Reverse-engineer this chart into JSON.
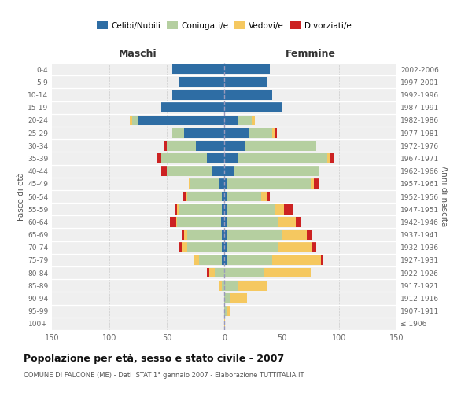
{
  "age_groups": [
    "100+",
    "95-99",
    "90-94",
    "85-89",
    "80-84",
    "75-79",
    "70-74",
    "65-69",
    "60-64",
    "55-59",
    "50-54",
    "45-49",
    "40-44",
    "35-39",
    "30-34",
    "25-29",
    "20-24",
    "15-19",
    "10-14",
    "5-9",
    "0-4"
  ],
  "birth_years": [
    "≤ 1906",
    "1907-1911",
    "1912-1916",
    "1917-1921",
    "1922-1926",
    "1927-1931",
    "1932-1936",
    "1937-1941",
    "1942-1946",
    "1947-1951",
    "1952-1956",
    "1957-1961",
    "1962-1966",
    "1967-1971",
    "1972-1976",
    "1977-1981",
    "1982-1986",
    "1987-1991",
    "1992-1996",
    "1997-2001",
    "2002-2006"
  ],
  "maschi": {
    "celibi": [
      0,
      0,
      0,
      0,
      0,
      2,
      2,
      2,
      3,
      2,
      2,
      5,
      10,
      15,
      25,
      35,
      75,
      55,
      45,
      40,
      45
    ],
    "coniugati": [
      0,
      0,
      0,
      2,
      8,
      20,
      30,
      30,
      38,
      38,
      30,
      25,
      40,
      40,
      25,
      10,
      5,
      0,
      0,
      0,
      0
    ],
    "vedovi": [
      0,
      0,
      0,
      2,
      5,
      5,
      5,
      3,
      1,
      1,
      1,
      1,
      0,
      0,
      0,
      0,
      2,
      0,
      0,
      0,
      0
    ],
    "divorziati": [
      0,
      0,
      0,
      0,
      2,
      0,
      3,
      2,
      5,
      2,
      3,
      0,
      5,
      3,
      3,
      0,
      0,
      0,
      0,
      0,
      0
    ]
  },
  "femmine": {
    "nubili": [
      0,
      0,
      0,
      0,
      0,
      2,
      2,
      2,
      2,
      2,
      2,
      3,
      8,
      12,
      18,
      22,
      12,
      50,
      42,
      38,
      40
    ],
    "coniugate": [
      0,
      2,
      5,
      12,
      35,
      40,
      45,
      48,
      45,
      42,
      30,
      72,
      75,
      78,
      62,
      20,
      12,
      0,
      0,
      0,
      0
    ],
    "vedove": [
      1,
      3,
      15,
      25,
      40,
      42,
      30,
      22,
      15,
      8,
      5,
      3,
      0,
      2,
      0,
      2,
      3,
      0,
      0,
      0,
      0
    ],
    "divorziate": [
      0,
      0,
      0,
      0,
      0,
      2,
      3,
      5,
      5,
      8,
      3,
      4,
      0,
      4,
      0,
      2,
      0,
      0,
      0,
      0,
      0
    ]
  },
  "colors": {
    "celibi": "#2e6da4",
    "coniugati": "#b5cfa0",
    "vedovi": "#f5c860",
    "divorziati": "#cc2222"
  },
  "xlim": 150,
  "title": "Popolazione per età, sesso e stato civile - 2007",
  "subtitle": "COMUNE DI FALCONE (ME) - Dati ISTAT 1° gennaio 2007 - Elaborazione TUTTITALIA.IT",
  "ylabel_left": "Fasce di età",
  "ylabel_right": "Anni di nascita",
  "header_maschi": "Maschi",
  "header_femmine": "Femmine",
  "bg_color": "#efefef",
  "legend_labels": [
    "Celibi/Nubili",
    "Coniugati/e",
    "Vedovi/e",
    "Divorziati/e"
  ]
}
